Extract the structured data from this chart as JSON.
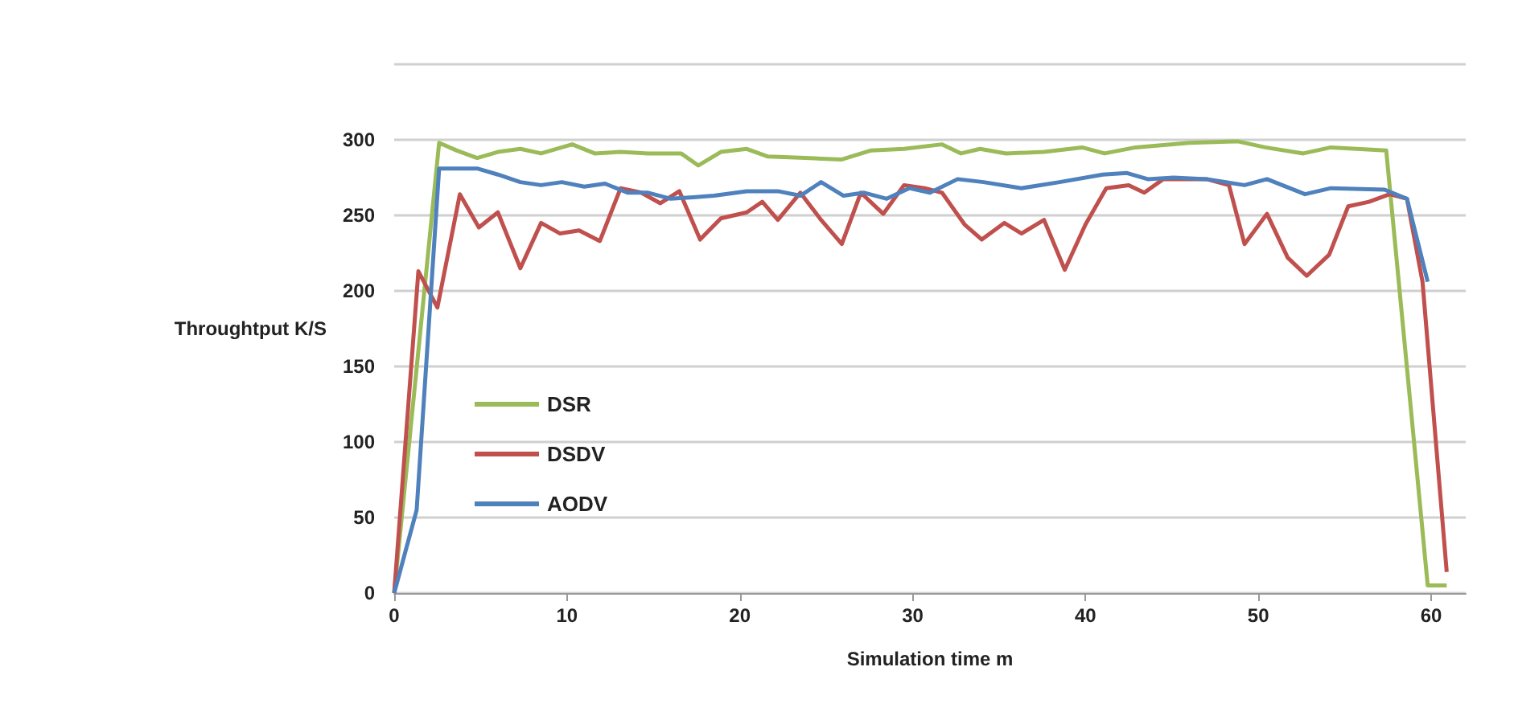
{
  "chart_data": {
    "type": "line",
    "xlabel": "Simulation time m",
    "ylabel": "Throughtput K/S",
    "xlim": [
      0,
      62
    ],
    "xticks": [
      0,
      10,
      20,
      30,
      40,
      50,
      60
    ],
    "ylim": [
      0,
      350
    ],
    "yticks": [
      0,
      50,
      100,
      150,
      200,
      250,
      300,
      {
        "value": 350,
        "label": null
      }
    ],
    "grid": "y",
    "legend": "left",
    "marker": "none",
    "line_style": "solid",
    "series": [
      {
        "name": "DSR",
        "color": "#9bbb59",
        "x": [
          0,
          2.6,
          3.6,
          4.8,
          6,
          7.3,
          8.5,
          10.3,
          11.6,
          13.1,
          14.7,
          16.6,
          17.6,
          18.9,
          20.4,
          21.6,
          23.8,
          25.9,
          27.6,
          29.5,
          31.7,
          32.8,
          33.9,
          35.4,
          37.6,
          39.8,
          41.1,
          42.9,
          46,
          48.8,
          50.4,
          52.6,
          54.2,
          57.4,
          59.8,
          60.9
        ],
        "values": [
          0,
          298,
          293,
          288,
          292,
          294,
          291,
          297,
          291,
          292,
          291,
          291,
          283,
          292,
          294,
          289,
          288,
          287,
          293,
          294,
          297,
          291,
          294,
          291,
          292,
          295,
          291,
          295,
          298,
          299,
          295,
          291,
          295,
          293,
          5,
          5
        ]
      },
      {
        "name": "DSDV",
        "color": "#c0504d",
        "x": [
          0,
          1.4,
          2.5,
          3.8,
          4.9,
          6,
          7.3,
          8.5,
          9.6,
          10.7,
          11.9,
          13.1,
          14.3,
          15.4,
          16.5,
          17.7,
          18.9,
          20.4,
          21.3,
          22.2,
          23.5,
          24.7,
          25.9,
          27,
          28.3,
          29.5,
          30.7,
          31.7,
          33,
          34,
          35.3,
          36.3,
          37.6,
          38.8,
          40,
          41.2,
          42.5,
          43.4,
          44.5,
          45.8,
          47,
          48.3,
          49.2,
          50.5,
          51.7,
          52.8,
          54.1,
          55.2,
          56.4,
          57.6,
          58.6,
          59.5,
          60.9
        ],
        "values": [
          0,
          213,
          189,
          264,
          242,
          252,
          215,
          245,
          238,
          240,
          233,
          268,
          265,
          258,
          266,
          234,
          248,
          252,
          259,
          247,
          265,
          247,
          231,
          265,
          251,
          270,
          268,
          265,
          244,
          234,
          245,
          238,
          247,
          214,
          244,
          268,
          270,
          265,
          274,
          274,
          274,
          270,
          231,
          251,
          222,
          210,
          224,
          256,
          259,
          264,
          261,
          206,
          14
        ]
      },
      {
        "name": "AODV",
        "color": "#4f81bd",
        "x": [
          0,
          1.3,
          2.6,
          4.8,
          6,
          7.3,
          8.5,
          9.7,
          11,
          12.2,
          13.5,
          14.7,
          16,
          17.3,
          18.5,
          20.4,
          22.2,
          23.5,
          24.7,
          26,
          27.2,
          28.5,
          29.8,
          31,
          32.6,
          34.1,
          36.3,
          38.5,
          41,
          42.4,
          43.6,
          45.1,
          47,
          49.2,
          50.5,
          52.7,
          54.2,
          57.3,
          58.6,
          59.8
        ],
        "values": [
          0,
          55,
          281,
          281,
          277,
          272,
          270,
          272,
          269,
          271,
          265,
          265,
          261,
          262,
          263,
          266,
          266,
          263,
          272,
          263,
          265,
          261,
          268,
          265,
          274,
          272,
          268,
          272,
          277,
          278,
          274,
          275,
          274,
          270,
          274,
          264,
          268,
          267,
          261,
          206
        ]
      }
    ]
  }
}
